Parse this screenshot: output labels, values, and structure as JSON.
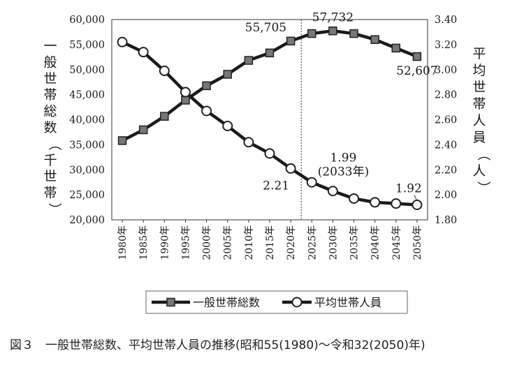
{
  "caption": "図３　一般世帯総数、平均世帯人員の推移(昭和55(1980)～令和32(2050)年)",
  "chart_data": {
    "type": "line",
    "title": "",
    "x": [
      "1980年",
      "1985年",
      "1990年",
      "1995年",
      "2000年",
      "2005年",
      "2010年",
      "2015年",
      "2020年",
      "2025年",
      "2030年",
      "2035年",
      "2040年",
      "2045年",
      "2050年"
    ],
    "ylabel": "一般世帯総数（千世帯）",
    "ylabel_right": "平均世帯人員（人）",
    "ylim": [
      20000,
      60000
    ],
    "ylim_right": [
      1.8,
      3.4
    ],
    "yticks": [
      "20,000",
      "25,000",
      "30,000",
      "35,000",
      "40,000",
      "45,000",
      "50,000",
      "55,000",
      "60,000"
    ],
    "yticks_right": [
      "1.80",
      "2.00",
      "2.20",
      "2.40",
      "2.60",
      "2.80",
      "3.00",
      "3.20",
      "3.40"
    ],
    "projection_divider_between": [
      "2020年",
      "2025年"
    ],
    "series": [
      {
        "name": "一般世帯総数",
        "axis": "left",
        "marker": "square",
        "color": "#1a1a1a",
        "marker_fill": "#777777",
        "values": [
          35824,
          37980,
          40670,
          43900,
          46782,
          49063,
          51842,
          53332,
          55705,
          57200,
          57732,
          57200,
          56000,
          54300,
          52607
        ]
      },
      {
        "name": "平均世帯人員",
        "axis": "right",
        "marker": "circle",
        "color": "#1a1a1a",
        "marker_fill": "#ffffff",
        "values": [
          3.22,
          3.14,
          2.99,
          2.82,
          2.67,
          2.55,
          2.42,
          2.33,
          2.21,
          2.1,
          2.03,
          1.97,
          1.94,
          1.93,
          1.92
        ]
      }
    ],
    "annotations": [
      {
        "text": "55,705"
      },
      {
        "text": "57,732"
      },
      {
        "text": "52,607"
      },
      {
        "text": "1.99"
      },
      {
        "text": "(2033年)"
      },
      {
        "text": "2.21"
      },
      {
        "text": "1.92"
      }
    ],
    "legend": {
      "placement": "bottom",
      "items": [
        "一般世帯総数",
        "平均世帯人員"
      ]
    }
  }
}
